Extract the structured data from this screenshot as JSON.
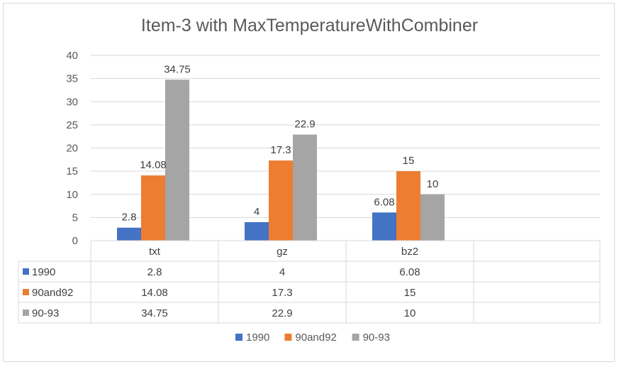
{
  "chart_data": {
    "type": "bar",
    "title": "Item-3 with MaxTemperatureWithCombiner",
    "categories": [
      "txt",
      "gz",
      "bz2"
    ],
    "series": [
      {
        "name": "1990",
        "values": [
          2.8,
          4,
          6.08
        ],
        "value_labels": [
          "2.8",
          "4",
          "6.08"
        ],
        "color": "#4472c4"
      },
      {
        "name": "90and92",
        "values": [
          14.08,
          17.3,
          15
        ],
        "value_labels": [
          "14.08",
          "17.3",
          "15"
        ],
        "color": "#ed7d31"
      },
      {
        "name": "90-93",
        "values": [
          34.75,
          22.9,
          10
        ],
        "value_labels": [
          "34.75",
          "22.9",
          "10"
        ],
        "color": "#a5a5a5"
      }
    ],
    "ylim": [
      0,
      40
    ],
    "yticks": [
      "0",
      "5",
      "10",
      "15",
      "20",
      "25",
      "30",
      "35",
      "40"
    ],
    "grid": true,
    "data_table": true,
    "legend_position": "bottom"
  }
}
